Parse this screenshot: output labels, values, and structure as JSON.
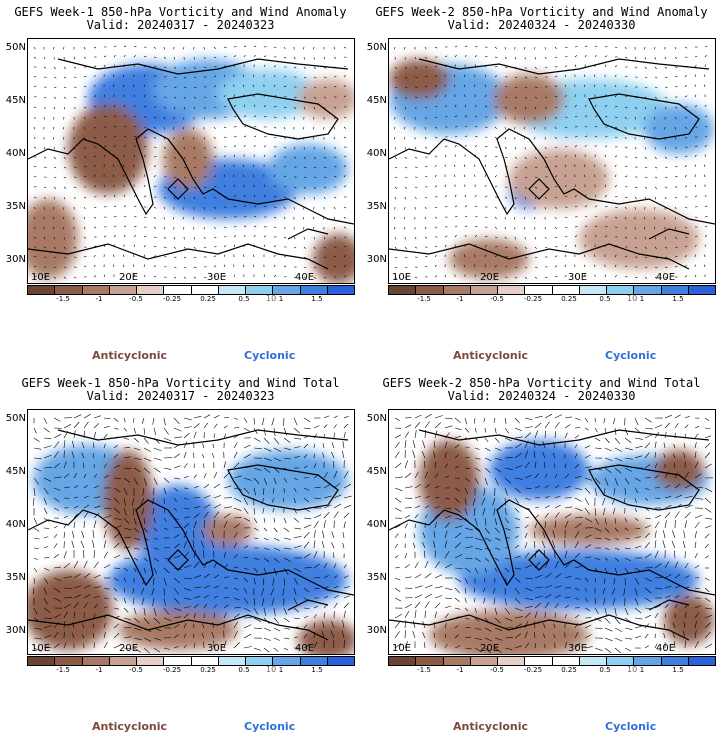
{
  "colors": {
    "anticyclonic": "#7a4a3a",
    "cyclonic": "#2f6fd9",
    "scale": [
      "#6b4434",
      "#8c5b48",
      "#a87a66",
      "#c7a293",
      "#e5cfc6",
      "#ffffff",
      "#ffffff",
      "#c6e9f5",
      "#8fd0f0",
      "#66a6e6",
      "#3f7fe0",
      "#2a60d8"
    ]
  },
  "colorbar_ticks": [
    "-1.5",
    "-1",
    "-0.5",
    "-0.25",
    "0.25",
    "0.5",
    "1",
    "1.5"
  ],
  "scale_label": "10",
  "legend": {
    "anticyclonic": "Anticyclonic",
    "cyclonic": "Cyclonic"
  },
  "lat_labels": [
    "50N",
    "45N",
    "40N",
    "35N",
    "30N"
  ],
  "lon_labels": [
    "10E",
    "20E",
    "30E",
    "40E"
  ],
  "panels": [
    {
      "title": "GEFS Week-1 850-hPa Vorticity and Wind Anomaly",
      "valid": "Valid: 20240317 - 20240323"
    },
    {
      "title": "GEFS Week-2 850-hPa Vorticity and Wind Anomaly",
      "valid": "Valid: 20240324 - 20240330"
    },
    {
      "title": "GEFS Week-1 850-hPa Vorticity and Wind Total",
      "valid": "Valid: 20240317 - 20240323"
    },
    {
      "title": "GEFS Week-2 850-hPa Vorticity and Wind Total",
      "valid": "Valid: 20240324 - 20240330"
    }
  ]
}
